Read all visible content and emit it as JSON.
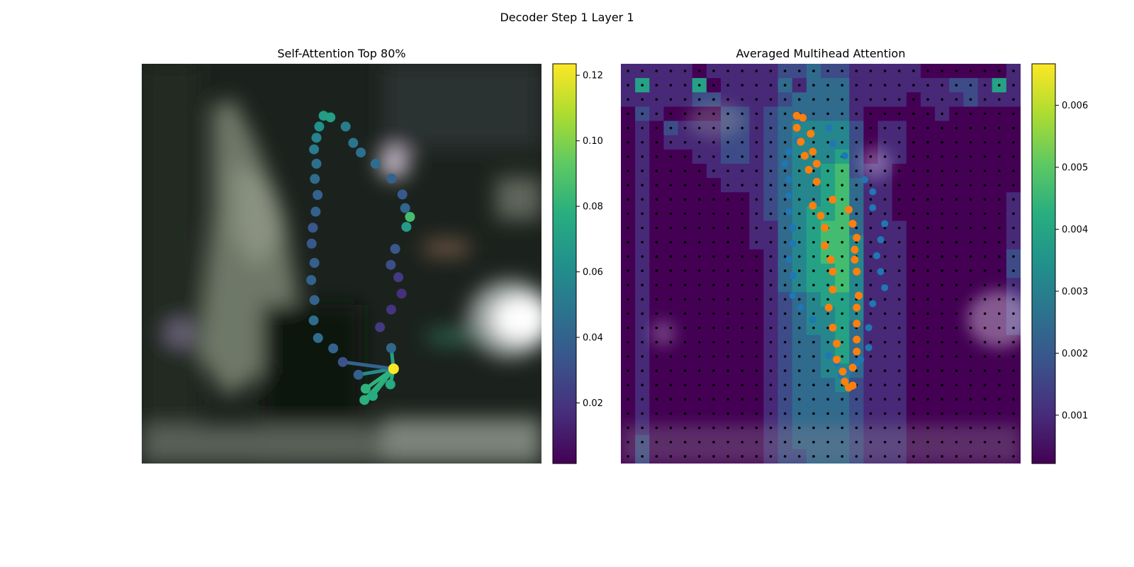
{
  "figure": {
    "suptitle": "Decoder Step 1 Layer 1"
  },
  "chart_data": [
    {
      "type": "scatter",
      "title": "Self-Attention Top 80%",
      "xlabel": "",
      "ylabel": "",
      "description_axes": "hidden",
      "background": "blurred dark photograph",
      "colormap": "viridis",
      "colorbar": {
        "range": [
          0.0015,
          0.1235
        ],
        "ticks": [
          0.02,
          0.04,
          0.06,
          0.08,
          0.1,
          0.12
        ],
        "tick_labels": [
          "0.02",
          "0.04",
          "0.06",
          "0.08",
          "0.10",
          "0.12"
        ]
      },
      "points": [
        {
          "x": 0.455,
          "y": 0.13,
          "v": 0.068
        },
        {
          "x": 0.472,
          "y": 0.134,
          "v": 0.07
        },
        {
          "x": 0.51,
          "y": 0.157,
          "v": 0.052
        },
        {
          "x": 0.444,
          "y": 0.157,
          "v": 0.062
        },
        {
          "x": 0.437,
          "y": 0.185,
          "v": 0.055
        },
        {
          "x": 0.529,
          "y": 0.198,
          "v": 0.048
        },
        {
          "x": 0.431,
          "y": 0.214,
          "v": 0.052
        },
        {
          "x": 0.548,
          "y": 0.222,
          "v": 0.046
        },
        {
          "x": 0.585,
          "y": 0.25,
          "v": 0.045
        },
        {
          "x": 0.437,
          "y": 0.25,
          "v": 0.046
        },
        {
          "x": 0.625,
          "y": 0.287,
          "v": 0.04
        },
        {
          "x": 0.433,
          "y": 0.288,
          "v": 0.044
        },
        {
          "x": 0.652,
          "y": 0.327,
          "v": 0.036
        },
        {
          "x": 0.44,
          "y": 0.328,
          "v": 0.04
        },
        {
          "x": 0.659,
          "y": 0.361,
          "v": 0.042
        },
        {
          "x": 0.435,
          "y": 0.37,
          "v": 0.039
        },
        {
          "x": 0.662,
          "y": 0.408,
          "v": 0.068
        },
        {
          "x": 0.671,
          "y": 0.383,
          "v": 0.086
        },
        {
          "x": 0.428,
          "y": 0.41,
          "v": 0.035
        },
        {
          "x": 0.634,
          "y": 0.463,
          "v": 0.035
        },
        {
          "x": 0.425,
          "y": 0.45,
          "v": 0.035
        },
        {
          "x": 0.623,
          "y": 0.503,
          "v": 0.03
        },
        {
          "x": 0.432,
          "y": 0.498,
          "v": 0.038
        },
        {
          "x": 0.642,
          "y": 0.534,
          "v": 0.022
        },
        {
          "x": 0.424,
          "y": 0.541,
          "v": 0.04
        },
        {
          "x": 0.65,
          "y": 0.575,
          "v": 0.018
        },
        {
          "x": 0.432,
          "y": 0.591,
          "v": 0.04
        },
        {
          "x": 0.624,
          "y": 0.615,
          "v": 0.02
        },
        {
          "x": 0.43,
          "y": 0.642,
          "v": 0.044
        },
        {
          "x": 0.596,
          "y": 0.659,
          "v": 0.022
        },
        {
          "x": 0.441,
          "y": 0.686,
          "v": 0.045
        },
        {
          "x": 0.624,
          "y": 0.711,
          "v": 0.042
        },
        {
          "x": 0.479,
          "y": 0.712,
          "v": 0.04
        },
        {
          "x": 0.503,
          "y": 0.746,
          "v": 0.032
        },
        {
          "x": 0.542,
          "y": 0.778,
          "v": 0.038
        },
        {
          "x": 0.622,
          "y": 0.802,
          "v": 0.075
        },
        {
          "x": 0.56,
          "y": 0.813,
          "v": 0.08
        },
        {
          "x": 0.578,
          "y": 0.831,
          "v": 0.076
        },
        {
          "x": 0.557,
          "y": 0.841,
          "v": 0.079
        },
        {
          "x": 0.63,
          "y": 0.763,
          "v": 0.123
        }
      ],
      "highlight_index": 39,
      "attention_edges": [
        {
          "to": 35,
          "v": 0.075
        },
        {
          "to": 36,
          "v": 0.08
        },
        {
          "to": 37,
          "v": 0.076
        },
        {
          "to": 38,
          "v": 0.079
        },
        {
          "to": 31,
          "v": 0.07
        },
        {
          "to": 34,
          "v": 0.06
        },
        {
          "to": 33,
          "v": 0.04
        }
      ]
    },
    {
      "type": "heatmap",
      "title": "Averaged Multihead Attention",
      "xlabel": "",
      "ylabel": "",
      "description_axes": "hidden",
      "grid_cells": [
        28,
        28
      ],
      "colormap": "viridis",
      "colorbar": {
        "range": [
          0.00022,
          0.00667
        ],
        "ticks": [
          0.001,
          0.002,
          0.003,
          0.004,
          0.005,
          0.006
        ],
        "tick_labels": [
          "0.001",
          "0.002",
          "0.003",
          "0.004",
          "0.005",
          "0.006"
        ]
      },
      "grid_point_color": "#000000",
      "series_blue_color": "#1f77b4",
      "series_orange_color": "#ff7f0e",
      "series_blue": [
        [
          0.45,
          0.14
        ],
        [
          0.52,
          0.16
        ],
        [
          0.44,
          0.19
        ],
        [
          0.42,
          0.22
        ],
        [
          0.53,
          0.2
        ],
        [
          0.56,
          0.23
        ],
        [
          0.41,
          0.25
        ],
        [
          0.61,
          0.29
        ],
        [
          0.42,
          0.29
        ],
        [
          0.63,
          0.32
        ],
        [
          0.42,
          0.33
        ],
        [
          0.63,
          0.36
        ],
        [
          0.42,
          0.37
        ],
        [
          0.66,
          0.4
        ],
        [
          0.43,
          0.41
        ],
        [
          0.65,
          0.44
        ],
        [
          0.43,
          0.45
        ],
        [
          0.64,
          0.48
        ],
        [
          0.42,
          0.49
        ],
        [
          0.65,
          0.52
        ],
        [
          0.43,
          0.53
        ],
        [
          0.66,
          0.56
        ],
        [
          0.43,
          0.58
        ],
        [
          0.63,
          0.6
        ],
        [
          0.45,
          0.61
        ],
        [
          0.62,
          0.66
        ],
        [
          0.48,
          0.64
        ],
        [
          0.62,
          0.71
        ],
        [
          0.52,
          0.73
        ],
        [
          0.6,
          0.74
        ],
        [
          0.54,
          0.75
        ],
        [
          0.55,
          0.78
        ],
        [
          0.57,
          0.77
        ],
        [
          0.59,
          0.75
        ]
      ],
      "series_orange": [
        [
          0.44,
          0.13
        ],
        [
          0.455,
          0.135
        ],
        [
          0.44,
          0.16
        ],
        [
          0.475,
          0.175
        ],
        [
          0.45,
          0.195
        ],
        [
          0.48,
          0.22
        ],
        [
          0.46,
          0.23
        ],
        [
          0.49,
          0.25
        ],
        [
          0.47,
          0.265
        ],
        [
          0.49,
          0.295
        ],
        [
          0.53,
          0.34
        ],
        [
          0.48,
          0.355
        ],
        [
          0.5,
          0.38
        ],
        [
          0.57,
          0.365
        ],
        [
          0.58,
          0.4
        ],
        [
          0.51,
          0.41
        ],
        [
          0.59,
          0.435
        ],
        [
          0.51,
          0.455
        ],
        [
          0.585,
          0.465
        ],
        [
          0.525,
          0.49
        ],
        [
          0.585,
          0.49
        ],
        [
          0.53,
          0.52
        ],
        [
          0.59,
          0.52
        ],
        [
          0.53,
          0.565
        ],
        [
          0.595,
          0.58
        ],
        [
          0.52,
          0.61
        ],
        [
          0.59,
          0.61
        ],
        [
          0.53,
          0.66
        ],
        [
          0.59,
          0.65
        ],
        [
          0.54,
          0.7
        ],
        [
          0.59,
          0.69
        ],
        [
          0.54,
          0.74
        ],
        [
          0.59,
          0.72
        ],
        [
          0.555,
          0.77
        ],
        [
          0.58,
          0.76
        ],
        [
          0.56,
          0.795
        ],
        [
          0.57,
          0.81
        ],
        [
          0.58,
          0.805
        ]
      ],
      "cells": [
        "2222212222233433222221111112",
        "2622261222242444222222233262",
        "2222233222234444222212223222",
        "1321111332344444211111211111",
        "1213222332345555312211111111",
        "1212222332345555312211111111",
        "1211122332345556312211111111",
        "1211112222345567322111111111",
        "1211111222345567422111111111",
        "1211111112345567422111111112",
        "1211111112345667422111111112",
        "1211111112245677422211111112",
        "1211111112245677522211111112",
        "1211111111245677522211111113",
        "1211111111245667522211111113",
        "1211111111245667522211111112",
        "1211111111234566522211111112",
        "1211111111234556522211111112",
        "1211111111234556422211111112",
        "1211111111234456422211111111",
        "1211111111234456422211111111",
        "1211111111234455422211111111",
        "1211111111234445322211111111",
        "1211111111234444322211111111",
        "1211111111234444322211111111",
        "1211111111234444322211111111",
        "1311111111234444322211111111",
        "1311111111233444322211111111"
      ]
    }
  ]
}
